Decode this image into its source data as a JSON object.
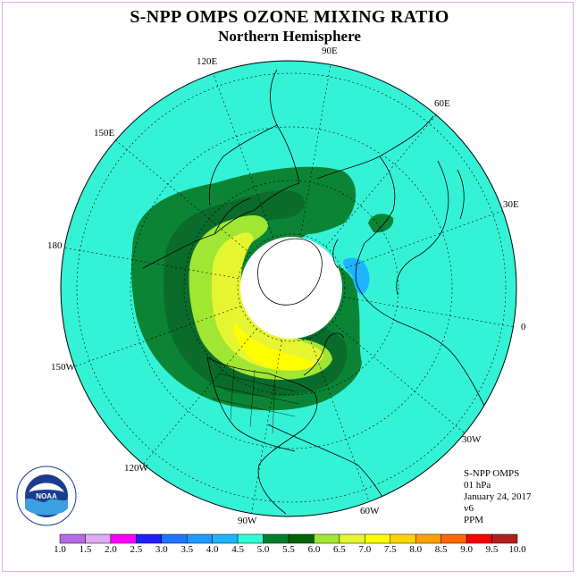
{
  "title": "S-NPP OMPS OZONE MIXING RATIO",
  "subtitle": "Northern Hemisphere",
  "longitude_labels": [
    "90E",
    "60E",
    "30E",
    "0",
    "30W",
    "60W",
    "90W",
    "120W",
    "150W",
    "180",
    "150E",
    "120E"
  ],
  "info": {
    "instrument": "S-NPP OMPS",
    "pressure": "01 hPa",
    "date": "January 24, 2017",
    "version": "v6",
    "units": "PPM"
  },
  "logo": {
    "text": "NOAA",
    "ring_text": "NATIONAL OCEANIC AND ATMOSPHERIC ADMINISTRATION · U.S. DEPARTMENT OF COMMERCE"
  },
  "colorbar": {
    "labels": [
      "1.0",
      "1.5",
      "2.0",
      "2.5",
      "3.0",
      "3.5",
      "4.0",
      "4.5",
      "5.0",
      "5.5",
      "6.0",
      "6.5",
      "7.0",
      "7.5",
      "8.0",
      "8.5",
      "9.0",
      "9.5",
      "10.0"
    ],
    "colors": [
      "#b469e6",
      "#dcaaf0",
      "#ff00ff",
      "#1e1eff",
      "#1e78ff",
      "#1e9bff",
      "#1eb4ff",
      "#30ffd2",
      "#007f2f",
      "#006400",
      "#a0e632",
      "#e6f532",
      "#ffff00",
      "#ffd200",
      "#ffa000",
      "#ff6a00",
      "#ff0000",
      "#b41e1e",
      "#7d4a2a"
    ]
  },
  "map_colors": {
    "background": "#34f2d6",
    "band_55": "#0b8435",
    "band_60": "#0a6b2b",
    "band_65": "#a0e632",
    "band_70": "#e6f532",
    "band_75": "#ffff00",
    "low_35": "#1eb4ff",
    "night": "#ffffff"
  }
}
